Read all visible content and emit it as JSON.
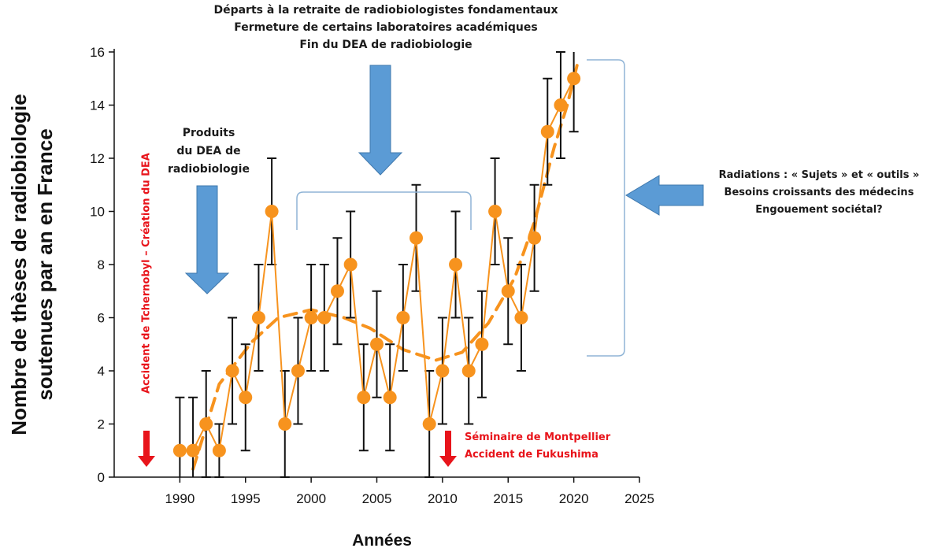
{
  "chart_data": {
    "type": "line",
    "xlabel": "Années",
    "ylabel_lines": [
      "Nombre de thèses de radiobiologie",
      "soutenues par an en France"
    ],
    "xlim": [
      1985,
      2025
    ],
    "ylim": [
      0,
      16
    ],
    "xticks": [
      1990,
      1995,
      2000,
      2005,
      2010,
      2015,
      2020,
      2025
    ],
    "yticks": [
      0,
      2,
      4,
      6,
      8,
      10,
      12,
      14,
      16
    ],
    "x": [
      1990,
      1991,
      1992,
      1993,
      1994,
      1995,
      1996,
      1997,
      1998,
      1999,
      2000,
      2001,
      2002,
      2003,
      2004,
      2005,
      2006,
      2007,
      2008,
      2009,
      2010,
      2011,
      2012,
      2013,
      2014,
      2015,
      2016,
      2017,
      2018,
      2019,
      2020
    ],
    "series": [
      {
        "values": [
          1,
          1,
          2,
          1,
          4,
          3,
          6,
          10,
          2,
          4,
          6,
          6,
          7,
          8,
          3,
          5,
          3,
          6,
          9,
          2,
          4,
          8,
          4,
          5,
          10,
          7,
          6,
          9,
          13,
          14,
          15
        ],
        "error": [
          2,
          2,
          2,
          1,
          2,
          2,
          2,
          2,
          2,
          2,
          2,
          2,
          2,
          2,
          2,
          2,
          2,
          2,
          2,
          2,
          2,
          2,
          2,
          2,
          2,
          2,
          2,
          2,
          2,
          2,
          2
        ]
      }
    ],
    "trend": {
      "x": [
        1991.0,
        1993.0,
        1995.5,
        1997.5,
        2000.0,
        2002.5,
        2004.5,
        2007.0,
        2009.5,
        2011.5,
        2013.5,
        2015.5,
        2017.0,
        2018.5,
        2019.5,
        2020.3
      ],
      "y": [
        0.3,
        3.5,
        5.1,
        6.0,
        6.3,
        6.0,
        5.6,
        4.8,
        4.4,
        4.7,
        5.8,
        7.5,
        9.6,
        12.4,
        14.0,
        15.6
      ]
    },
    "colors": {
      "series": "#f7931e",
      "error_bars": "#111111",
      "blue_arrow": "#5b9bd5",
      "bracket": "#8fb4d6",
      "red": "#e8141b"
    }
  },
  "annotations": {
    "top_lines": [
      "Départs à la retraite de radiobiologistes fondamentaux",
      "Fermeture de certains laboratoires académiques",
      "Fin du DEA de radiobiologie"
    ],
    "dea_lines": [
      "Produits",
      "du DEA de",
      "radiobiologie"
    ],
    "right_lines": [
      "Radiations : « Sujets » et « outils »",
      "Besoins croissants des médecins",
      "Engouement sociétal?"
    ],
    "tchernobyl": "Accident de Tchernobyl – Création du DEA",
    "montpellier_lines": [
      "Séminaire de Montpellier",
      "Accident de Fukushima"
    ]
  }
}
